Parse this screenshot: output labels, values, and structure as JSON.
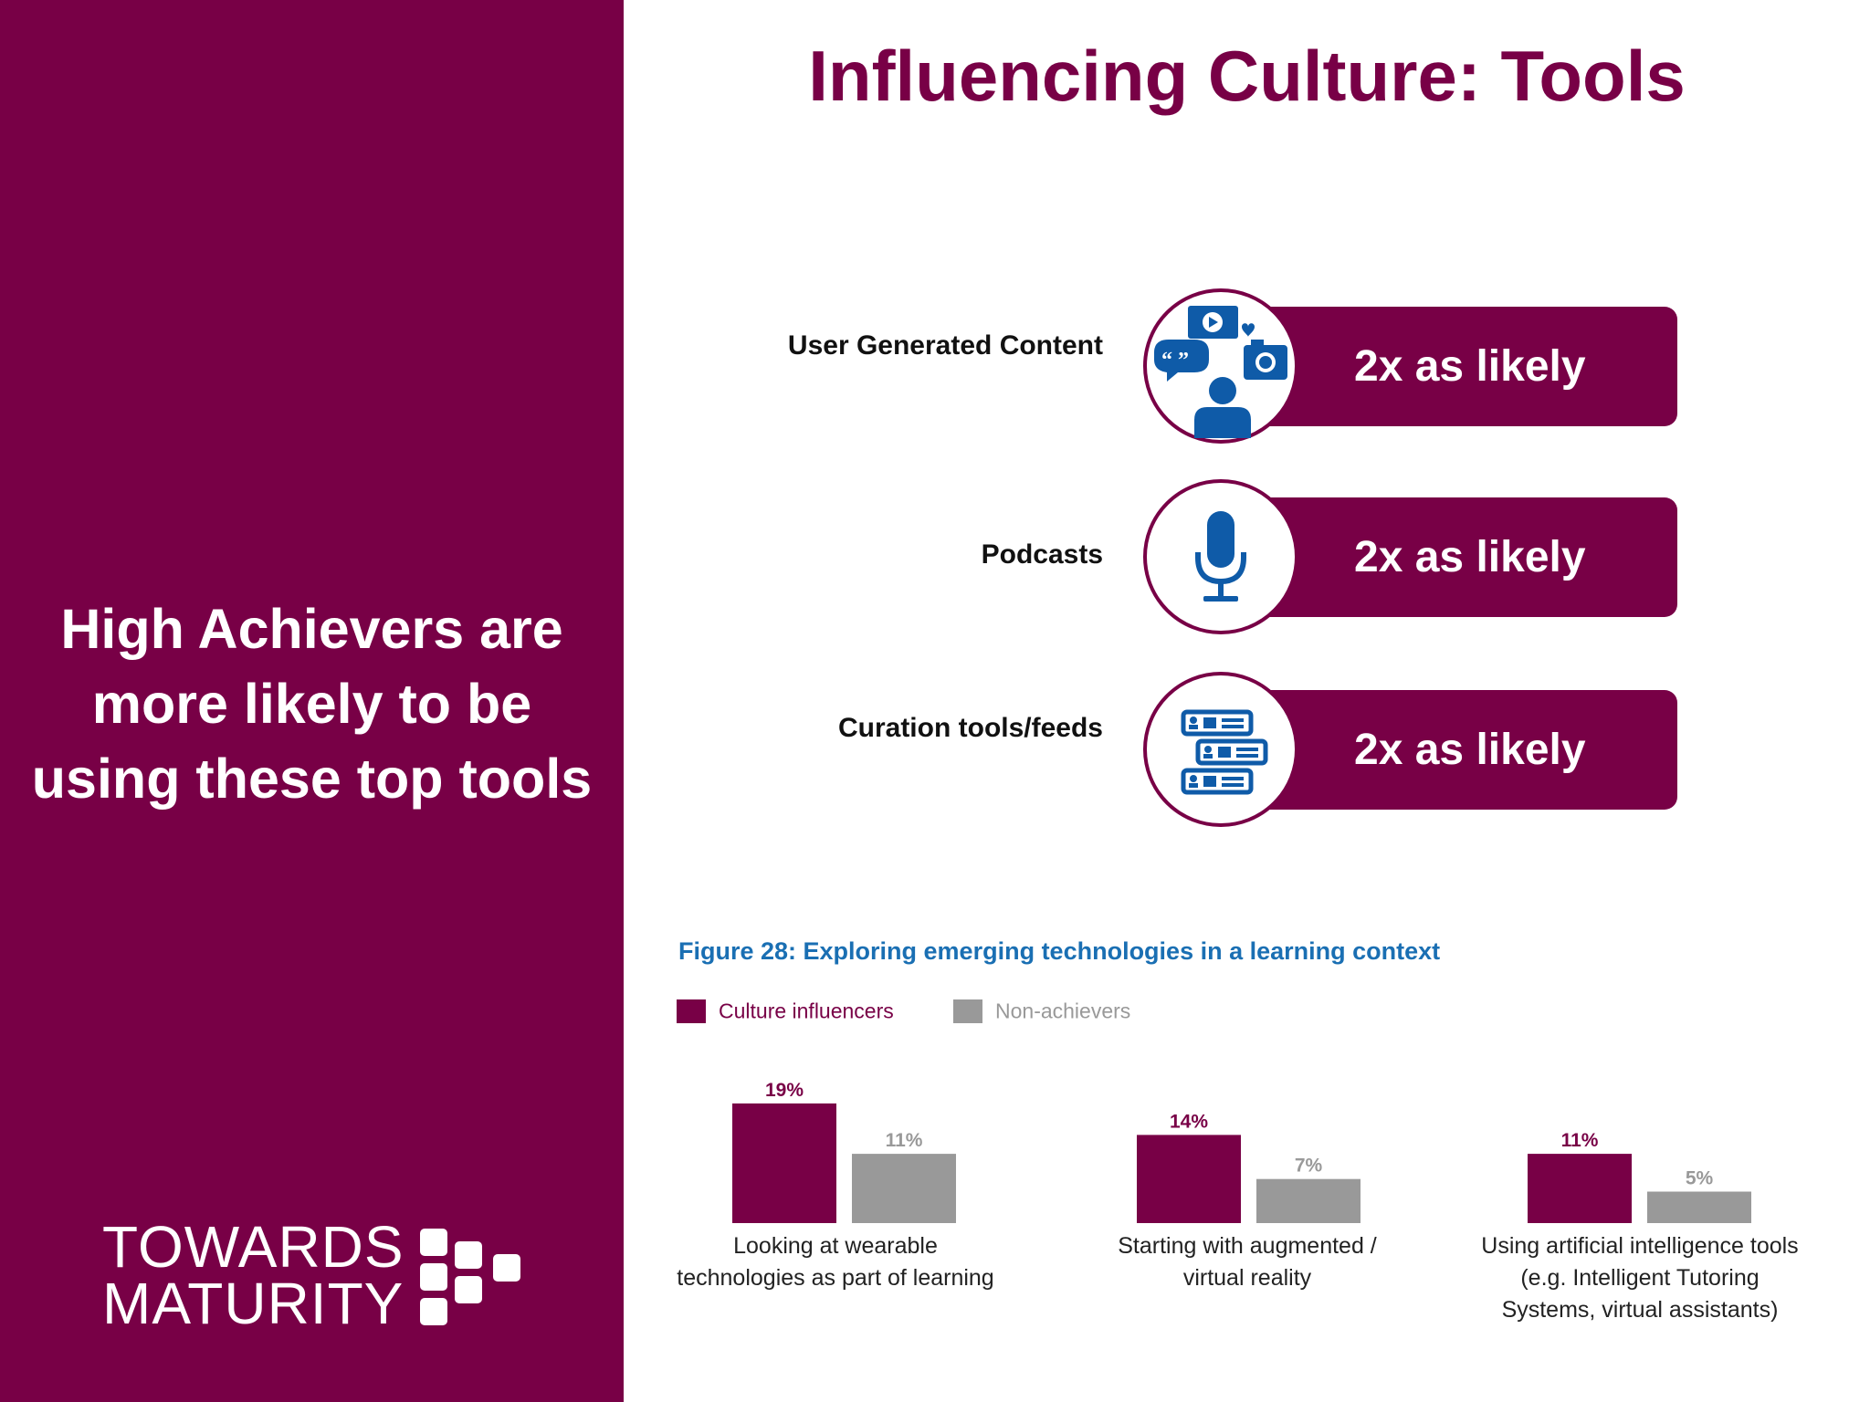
{
  "sidebar": {
    "headline_lines": [
      "High Achievers are",
      "more likely to be",
      "using these top tools"
    ],
    "logo": {
      "line1": "TOWARDS",
      "line2": "MATURITY"
    }
  },
  "title": "Influencing Culture: Tools",
  "tools": [
    {
      "label": "User Generated Content",
      "value_text": "2x as likely",
      "icon": "user-generated-content-icon"
    },
    {
      "label": "Podcasts",
      "value_text": "2x as likely",
      "icon": "microphone-icon"
    },
    {
      "label": "Curation tools/feeds",
      "value_text": "2x as likely",
      "icon": "content-feed-icon"
    }
  ],
  "colors": {
    "brand": "#780046",
    "grey": "#999999",
    "figure_title": "#1a6fb3",
    "icon_blue": "#0f5ba8"
  },
  "chart_data": {
    "type": "bar",
    "title": "Figure 28: Exploring emerging technologies in a learning context",
    "categories": [
      [
        "Looking at wearable",
        "technologies as part of learning"
      ],
      [
        "Starting with augmented /",
        "virtual reality"
      ],
      [
        "Using artificial intelligence tools",
        "(e.g. Intelligent Tutoring",
        "Systems, virtual assistants)"
      ]
    ],
    "series": [
      {
        "name": "Culture influencers",
        "color": "#780046",
        "values": [
          19,
          14,
          11
        ],
        "labels": [
          "19%",
          "14%",
          "11%"
        ]
      },
      {
        "name": "Non-achievers",
        "color": "#999999",
        "values": [
          11,
          7,
          5
        ],
        "labels": [
          "11%",
          "7%",
          "5%"
        ]
      }
    ],
    "legend_position": "top-left",
    "grid": false,
    "ylim": [
      0,
      20
    ]
  }
}
